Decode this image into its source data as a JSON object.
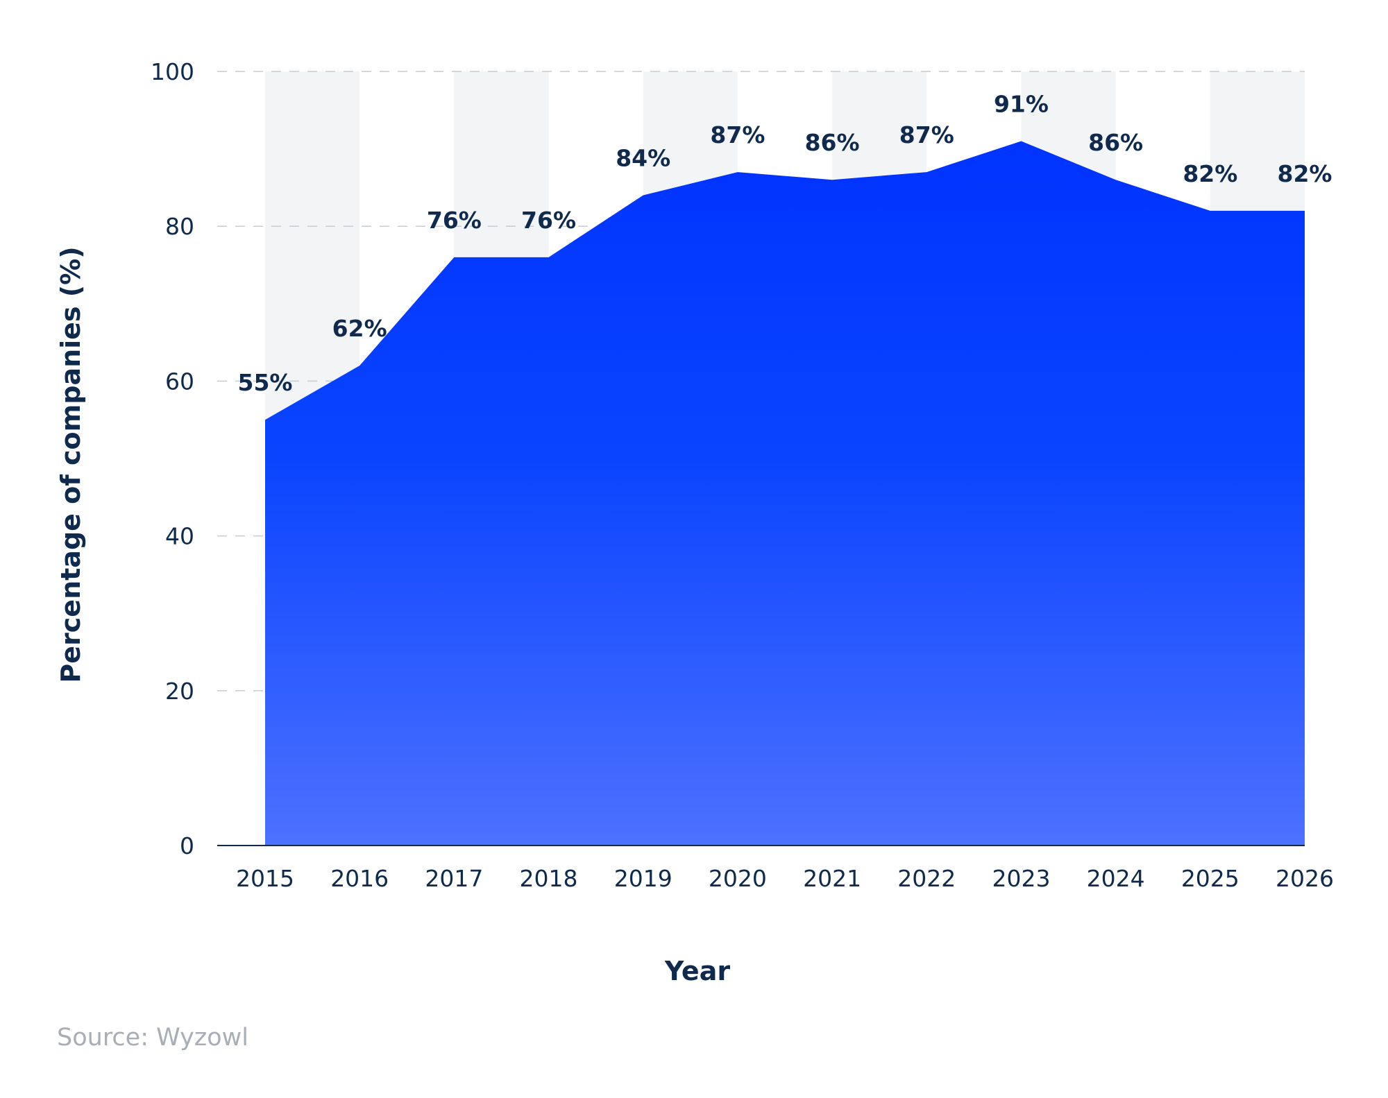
{
  "chart_data": {
    "type": "area",
    "x": [
      "2015",
      "2016",
      "2017",
      "2018",
      "2019",
      "2020",
      "2021",
      "2022",
      "2023",
      "2024",
      "2025",
      "2026"
    ],
    "series": [
      {
        "values": [
          55,
          62,
          76,
          76,
          84,
          87,
          86,
          87,
          91,
          86,
          82,
          82
        ],
        "labels": [
          "55%",
          "62%",
          "76%",
          "76%",
          "84%",
          "87%",
          "86%",
          "87%",
          "91%",
          "86%",
          "82%",
          "82%"
        ]
      }
    ],
    "xlabel": "Year",
    "ylabel": "Percentage of companies (%)",
    "ylim": [
      0,
      100
    ],
    "yticks": [
      "0",
      "20",
      "40",
      "60",
      "80",
      "100"
    ],
    "grid": "horizontal dashed",
    "colors": {
      "area_top": "#0033ff",
      "area_bottom": "#4d71ff",
      "alternating_band": "#f3f4f6",
      "text": "#0f2a4d",
      "gridline": "#c8ccd2"
    }
  },
  "source": "Source: Wyzowl"
}
